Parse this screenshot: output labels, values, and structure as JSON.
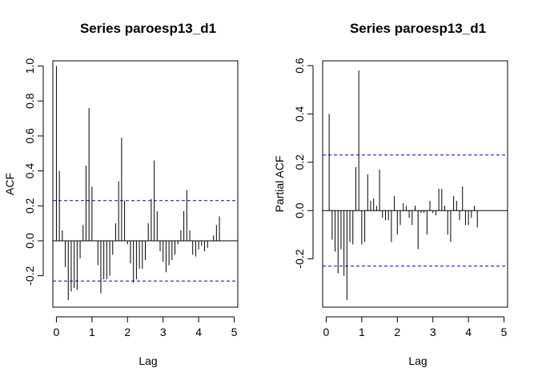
{
  "chart_data": [
    {
      "type": "bar",
      "title": "Series  paroesp13_d1",
      "xlabel": "Lag",
      "ylabel": "ACF",
      "xlim": [
        -0.1,
        5.1
      ],
      "ylim": [
        -0.38,
        1.03
      ],
      "xticks": [
        0,
        1,
        2,
        3,
        4,
        5
      ],
      "yticks": [
        -0.2,
        0.0,
        0.2,
        0.4,
        0.6,
        0.8,
        1.0
      ],
      "ytick_labels": [
        "-0.2",
        "0.0",
        "0.2",
        "0.4",
        "0.6",
        "0.8",
        "1.0"
      ],
      "ci": 0.23,
      "ci_color": "#0000cc",
      "lags": [
        0,
        0.0833,
        0.1667,
        0.25,
        0.3333,
        0.4167,
        0.5,
        0.5833,
        0.6667,
        0.75,
        0.8333,
        0.9167,
        1.0,
        1.0833,
        1.1667,
        1.25,
        1.3333,
        1.4167,
        1.5,
        1.5833,
        1.6667,
        1.75,
        1.8333,
        1.9167,
        2.0,
        2.0833,
        2.1667,
        2.25,
        2.3333,
        2.4167,
        2.5,
        2.5833,
        2.6667,
        2.75,
        2.8333,
        2.9167,
        3.0,
        3.0833,
        3.1667,
        3.25,
        3.3333,
        3.4167,
        3.5,
        3.5833,
        3.6667,
        3.75,
        3.8333,
        3.9167,
        4.0,
        4.0833,
        4.1667,
        4.25,
        4.3333,
        4.4167,
        4.5,
        4.5833,
        4.6667,
        4.75,
        4.8333,
        4.9167,
        5.0
      ],
      "values": [
        1.0,
        0.4,
        0.06,
        -0.15,
        -0.34,
        -0.29,
        -0.27,
        -0.28,
        -0.1,
        0.09,
        0.43,
        0.76,
        0.31,
        0.0,
        -0.14,
        -0.3,
        -0.22,
        -0.22,
        -0.2,
        -0.08,
        0.1,
        0.34,
        0.59,
        0.23,
        -0.02,
        -0.13,
        -0.24,
        -0.22,
        -0.16,
        -0.16,
        -0.11,
        0.1,
        0.24,
        0.46,
        0.17,
        -0.06,
        -0.12,
        -0.18,
        -0.14,
        -0.11,
        -0.08,
        -0.02,
        0.06,
        0.17,
        0.29,
        0.06,
        -0.08,
        -0.09,
        -0.05,
        -0.03,
        -0.06,
        -0.04,
        0.0,
        0.03,
        0.09,
        0.14,
        0.0,
        0.0,
        0.0,
        0.0,
        0.0
      ]
    },
    {
      "type": "bar",
      "title": "Series  paroesp13_d1",
      "xlabel": "Lag",
      "ylabel": "Partial ACF",
      "xlim": [
        -0.1,
        5.1
      ],
      "ylim": [
        -0.4,
        0.62
      ],
      "xticks": [
        0,
        1,
        2,
        3,
        4,
        5
      ],
      "yticks": [
        -0.2,
        0.0,
        0.2,
        0.4,
        0.6
      ],
      "ytick_labels": [
        "-0.2",
        "0.0",
        "0.2",
        "0.4",
        "0.6"
      ],
      "ci": 0.23,
      "ci_color": "#0000cc",
      "lags": [
        0.0833,
        0.1667,
        0.25,
        0.3333,
        0.4167,
        0.5,
        0.5833,
        0.6667,
        0.75,
        0.8333,
        0.9167,
        1.0,
        1.0833,
        1.1667,
        1.25,
        1.3333,
        1.4167,
        1.5,
        1.5833,
        1.6667,
        1.75,
        1.8333,
        1.9167,
        2.0,
        2.0833,
        2.1667,
        2.25,
        2.3333,
        2.4167,
        2.5,
        2.5833,
        2.6667,
        2.75,
        2.8333,
        2.9167,
        3.0,
        3.0833,
        3.1667,
        3.25,
        3.3333,
        3.4167,
        3.5,
        3.5833,
        3.6667,
        3.75,
        3.8333,
        3.9167,
        4.0,
        4.0833,
        4.1667,
        4.25,
        4.3333,
        4.4167,
        4.5,
        4.5833,
        4.6667,
        4.75,
        4.8333,
        4.9167,
        5.0
      ],
      "values": [
        0.4,
        -0.12,
        -0.17,
        -0.26,
        -0.16,
        -0.27,
        -0.37,
        -0.13,
        -0.14,
        0.18,
        0.58,
        -0.14,
        -0.13,
        0.15,
        0.04,
        0.05,
        0.02,
        0.17,
        -0.03,
        -0.04,
        -0.04,
        -0.13,
        0.06,
        -0.1,
        -0.06,
        0.03,
        0.02,
        -0.03,
        -0.06,
        0.02,
        -0.16,
        -0.01,
        -0.01,
        -0.1,
        0.04,
        -0.01,
        -0.02,
        0.09,
        0.09,
        0.02,
        -0.1,
        -0.13,
        0.06,
        0.04,
        -0.04,
        0.1,
        -0.06,
        -0.06,
        -0.03,
        0.02,
        -0.07,
        0.0,
        0.0,
        0.0,
        0.0,
        0.0,
        0.0,
        0.0,
        0.0,
        0.0
      ]
    }
  ]
}
